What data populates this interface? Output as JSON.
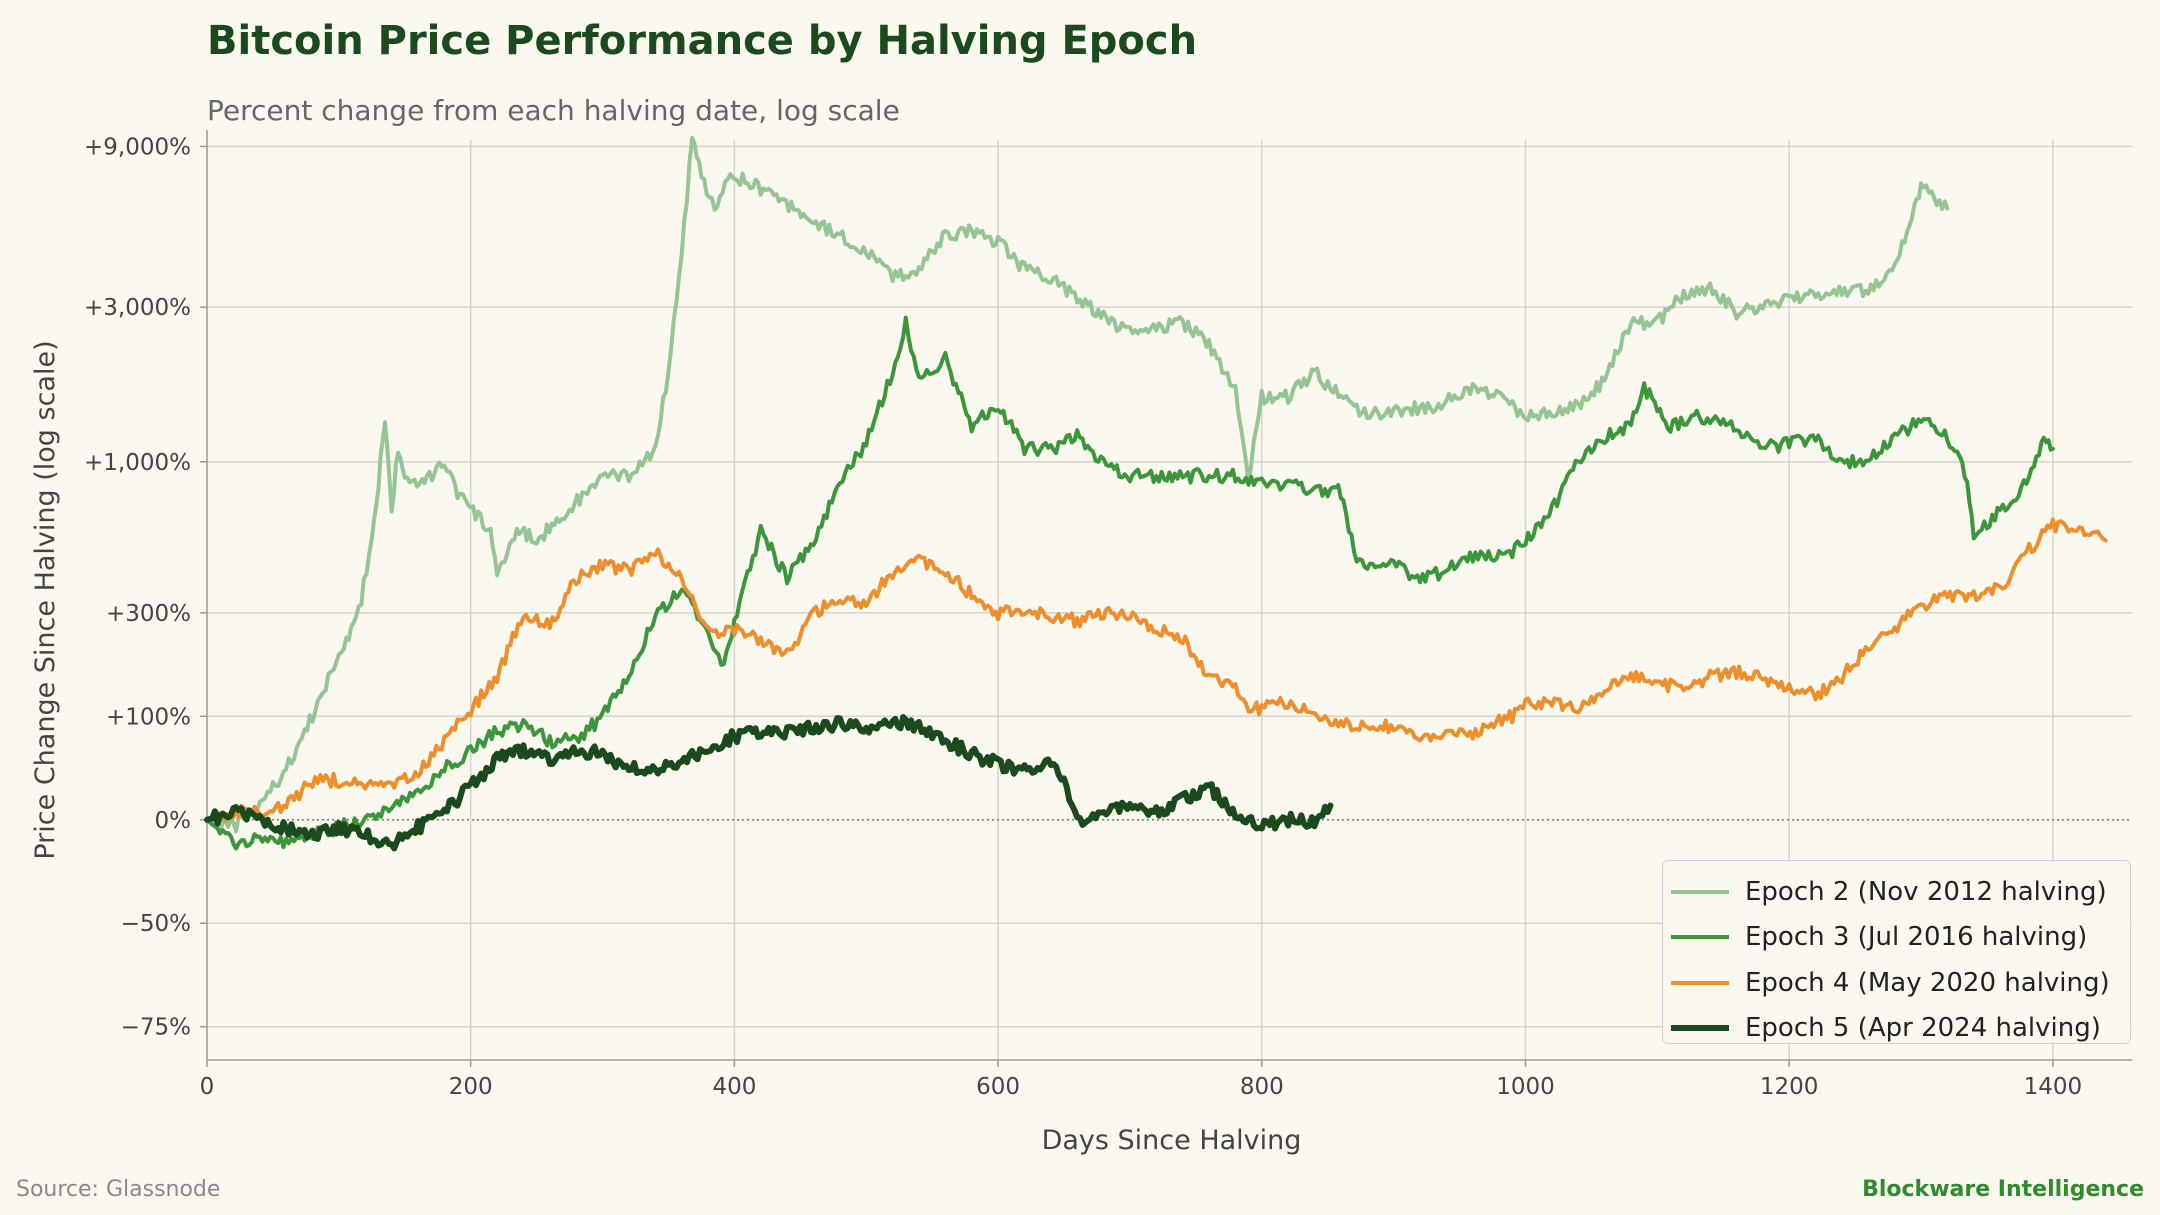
{
  "title": "Bitcoin Price Performance by Halving Epoch",
  "subtitle": "Percent change from each halving date, log scale",
  "source": "Source: Glassnode",
  "brand": "Blockware Intelligence",
  "chart_data": {
    "type": "line",
    "title": "Bitcoin Price Performance by Halving Epoch",
    "subtitle": "Percent change from each halving date, log scale",
    "xlabel": "Days Since Halving",
    "ylabel": "Price Change Since Halving (log scale)",
    "y_scale": "log (price multiple)",
    "xlim": [
      0,
      1460
    ],
    "ylim_multiple": [
      0.2,
      95
    ],
    "x_ticks": [
      0,
      200,
      400,
      600,
      800,
      1000,
      1200,
      1400
    ],
    "y_ticks": [
      {
        "label": "+9,000%",
        "multiple": 91
      },
      {
        "label": "+3,000%",
        "multiple": 31
      },
      {
        "label": "+1,000%",
        "multiple": 11
      },
      {
        "label": "+300%",
        "multiple": 4
      },
      {
        "label": "+100%",
        "multiple": 2
      },
      {
        "label": "0%",
        "multiple": 1
      },
      {
        "label": "−50%",
        "multiple": 0.5
      },
      {
        "label": "−75%",
        "multiple": 0.25
      }
    ],
    "grid": true,
    "legend_position": "bottom-right",
    "series": [
      {
        "name": "Epoch 2 (Nov 2012 halving)",
        "color": "#95c595",
        "width": 4,
        "points": [
          [
            0,
            1.0
          ],
          [
            20,
            0.95
          ],
          [
            40,
            1.1
          ],
          [
            60,
            1.4
          ],
          [
            80,
            2.0
          ],
          [
            100,
            3.0
          ],
          [
            115,
            4.0
          ],
          [
            125,
            6.5
          ],
          [
            130,
            9.5
          ],
          [
            135,
            15
          ],
          [
            140,
            8
          ],
          [
            145,
            12
          ],
          [
            150,
            10
          ],
          [
            165,
            9.5
          ],
          [
            180,
            11
          ],
          [
            190,
            9
          ],
          [
            200,
            8
          ],
          [
            215,
            7
          ],
          [
            220,
            5
          ],
          [
            235,
            7
          ],
          [
            250,
            6.5
          ],
          [
            275,
            8
          ],
          [
            300,
            10
          ],
          [
            320,
            10
          ],
          [
            340,
            12
          ],
          [
            350,
            20
          ],
          [
            360,
            45
          ],
          [
            368,
            95
          ],
          [
            375,
            75
          ],
          [
            385,
            60
          ],
          [
            395,
            75
          ],
          [
            410,
            72
          ],
          [
            430,
            65
          ],
          [
            445,
            60
          ],
          [
            460,
            55
          ],
          [
            480,
            50
          ],
          [
            500,
            45
          ],
          [
            520,
            38
          ],
          [
            540,
            40
          ],
          [
            560,
            50
          ],
          [
            580,
            52
          ],
          [
            600,
            48
          ],
          [
            620,
            40
          ],
          [
            640,
            38
          ],
          [
            660,
            33
          ],
          [
            680,
            29
          ],
          [
            700,
            26
          ],
          [
            720,
            27
          ],
          [
            740,
            28
          ],
          [
            760,
            24
          ],
          [
            780,
            18
          ],
          [
            790,
            10
          ],
          [
            800,
            17
          ],
          [
            820,
            17
          ],
          [
            840,
            20
          ],
          [
            860,
            17
          ],
          [
            880,
            15
          ],
          [
            900,
            15.5
          ],
          [
            930,
            16
          ],
          [
            960,
            18
          ],
          [
            980,
            17
          ],
          [
            1000,
            15
          ],
          [
            1020,
            15.5
          ],
          [
            1040,
            16
          ],
          [
            1060,
            19
          ],
          [
            1080,
            28
          ],
          [
            1100,
            28
          ],
          [
            1120,
            34
          ],
          [
            1140,
            35
          ],
          [
            1160,
            30
          ],
          [
            1180,
            31
          ],
          [
            1200,
            33
          ],
          [
            1230,
            34
          ],
          [
            1260,
            35
          ],
          [
            1280,
            40
          ],
          [
            1295,
            60
          ],
          [
            1300,
            70
          ],
          [
            1310,
            65
          ],
          [
            1320,
            60
          ]
        ]
      },
      {
        "name": "Epoch 3 (Jul 2016 halving)",
        "color": "#3c963c",
        "width": 4,
        "points": [
          [
            0,
            1.0
          ],
          [
            20,
            0.85
          ],
          [
            40,
            0.9
          ],
          [
            60,
            0.85
          ],
          [
            80,
            0.9
          ],
          [
            100,
            0.95
          ],
          [
            120,
            1.0
          ],
          [
            140,
            1.1
          ],
          [
            160,
            1.2
          ],
          [
            180,
            1.4
          ],
          [
            200,
            1.6
          ],
          [
            220,
            1.8
          ],
          [
            240,
            1.9
          ],
          [
            260,
            1.7
          ],
          [
            280,
            1.7
          ],
          [
            300,
            2.0
          ],
          [
            320,
            2.6
          ],
          [
            340,
            4.0
          ],
          [
            360,
            4.6
          ],
          [
            380,
            3.6
          ],
          [
            390,
            2.8
          ],
          [
            400,
            3.7
          ],
          [
            420,
            7.0
          ],
          [
            440,
            5.0
          ],
          [
            460,
            6.5
          ],
          [
            480,
            9.5
          ],
          [
            500,
            12.5
          ],
          [
            520,
            20
          ],
          [
            530,
            28
          ],
          [
            540,
            19
          ],
          [
            560,
            22
          ],
          [
            580,
            14
          ],
          [
            600,
            16
          ],
          [
            620,
            12
          ],
          [
            640,
            12
          ],
          [
            660,
            13
          ],
          [
            680,
            11
          ],
          [
            700,
            10
          ],
          [
            720,
            10
          ],
          [
            740,
            10
          ],
          [
            760,
            10
          ],
          [
            780,
            10
          ],
          [
            800,
            9.5
          ],
          [
            820,
            9.5
          ],
          [
            840,
            9.0
          ],
          [
            860,
            9.0
          ],
          [
            870,
            6.0
          ],
          [
            880,
            5.5
          ],
          [
            900,
            5.5
          ],
          [
            920,
            5.0
          ],
          [
            940,
            5.3
          ],
          [
            960,
            5.8
          ],
          [
            990,
            6.0
          ],
          [
            1000,
            6.5
          ],
          [
            1020,
            8.0
          ],
          [
            1040,
            11
          ],
          [
            1060,
            13
          ],
          [
            1080,
            14
          ],
          [
            1090,
            18
          ],
          [
            1110,
            14
          ],
          [
            1130,
            15
          ],
          [
            1150,
            14.5
          ],
          [
            1170,
            13
          ],
          [
            1190,
            12
          ],
          [
            1200,
            12.5
          ],
          [
            1220,
            13
          ],
          [
            1240,
            11
          ],
          [
            1260,
            11
          ],
          [
            1280,
            13
          ],
          [
            1300,
            14.5
          ],
          [
            1320,
            13
          ],
          [
            1335,
            10
          ],
          [
            1340,
            6.5
          ],
          [
            1360,
            8
          ],
          [
            1380,
            9.5
          ],
          [
            1395,
            13
          ],
          [
            1400,
            12
          ]
        ]
      },
      {
        "name": "Epoch 4 (May 2020 halving)",
        "color": "#ee8e2c",
        "width": 4,
        "points": [
          [
            0,
            1.0
          ],
          [
            20,
            1.05
          ],
          [
            40,
            1.05
          ],
          [
            60,
            1.1
          ],
          [
            80,
            1.3
          ],
          [
            100,
            1.3
          ],
          [
            120,
            1.25
          ],
          [
            140,
            1.25
          ],
          [
            160,
            1.35
          ],
          [
            180,
            1.7
          ],
          [
            200,
            2.1
          ],
          [
            220,
            2.6
          ],
          [
            240,
            4.0
          ],
          [
            260,
            3.7
          ],
          [
            280,
            5.0
          ],
          [
            300,
            5.5
          ],
          [
            320,
            5.3
          ],
          [
            340,
            6.0
          ],
          [
            360,
            5.0
          ],
          [
            380,
            3.5
          ],
          [
            400,
            3.6
          ],
          [
            420,
            3.3
          ],
          [
            440,
            3.0
          ],
          [
            460,
            4.0
          ],
          [
            480,
            4.4
          ],
          [
            500,
            4.3
          ],
          [
            520,
            5.2
          ],
          [
            540,
            5.7
          ],
          [
            560,
            5.3
          ],
          [
            580,
            4.5
          ],
          [
            600,
            4.0
          ],
          [
            620,
            4.1
          ],
          [
            640,
            3.9
          ],
          [
            660,
            3.8
          ],
          [
            680,
            4.0
          ],
          [
            700,
            4.0
          ],
          [
            720,
            3.6
          ],
          [
            740,
            3.4
          ],
          [
            760,
            2.6
          ],
          [
            780,
            2.4
          ],
          [
            790,
            2.1
          ],
          [
            800,
            2.1
          ],
          [
            820,
            2.2
          ],
          [
            840,
            2.0
          ],
          [
            860,
            1.9
          ],
          [
            880,
            1.9
          ],
          [
            900,
            1.85
          ],
          [
            920,
            1.75
          ],
          [
            940,
            1.8
          ],
          [
            960,
            1.8
          ],
          [
            990,
            2.0
          ],
          [
            1000,
            2.2
          ],
          [
            1020,
            2.2
          ],
          [
            1040,
            2.1
          ],
          [
            1060,
            2.4
          ],
          [
            1080,
            2.6
          ],
          [
            1100,
            2.5
          ],
          [
            1120,
            2.4
          ],
          [
            1140,
            2.6
          ],
          [
            1160,
            2.7
          ],
          [
            1180,
            2.6
          ],
          [
            1200,
            2.4
          ],
          [
            1220,
            2.3
          ],
          [
            1240,
            2.6
          ],
          [
            1260,
            3.2
          ],
          [
            1280,
            3.6
          ],
          [
            1300,
            4.2
          ],
          [
            1320,
            4.5
          ],
          [
            1340,
            4.5
          ],
          [
            1360,
            4.7
          ],
          [
            1380,
            6.0
          ],
          [
            1400,
            7.2
          ],
          [
            1420,
            6.9
          ],
          [
            1440,
            6.5
          ]
        ]
      },
      {
        "name": "Epoch 5 (Apr 2024 halving)",
        "color": "#1c4a1f",
        "width": 6,
        "points": [
          [
            0,
            1.0
          ],
          [
            20,
            1.05
          ],
          [
            40,
            1.0
          ],
          [
            60,
            0.95
          ],
          [
            80,
            0.9
          ],
          [
            100,
            0.95
          ],
          [
            120,
            0.9
          ],
          [
            140,
            0.85
          ],
          [
            160,
            0.95
          ],
          [
            180,
            1.05
          ],
          [
            200,
            1.25
          ],
          [
            220,
            1.5
          ],
          [
            240,
            1.6
          ],
          [
            260,
            1.5
          ],
          [
            280,
            1.6
          ],
          [
            300,
            1.55
          ],
          [
            320,
            1.4
          ],
          [
            340,
            1.4
          ],
          [
            360,
            1.5
          ],
          [
            380,
            1.6
          ],
          [
            400,
            1.75
          ],
          [
            420,
            1.8
          ],
          [
            440,
            1.8
          ],
          [
            460,
            1.85
          ],
          [
            480,
            1.9
          ],
          [
            500,
            1.85
          ],
          [
            520,
            1.95
          ],
          [
            540,
            1.85
          ],
          [
            560,
            1.7
          ],
          [
            580,
            1.55
          ],
          [
            600,
            1.45
          ],
          [
            620,
            1.4
          ],
          [
            640,
            1.45
          ],
          [
            650,
            1.3
          ],
          [
            660,
            1.0
          ],
          [
            680,
            1.05
          ],
          [
            700,
            1.1
          ],
          [
            720,
            1.05
          ],
          [
            740,
            1.15
          ],
          [
            760,
            1.25
          ],
          [
            780,
            1.05
          ],
          [
            800,
            0.95
          ],
          [
            820,
            1.0
          ],
          [
            840,
            0.98
          ],
          [
            852,
            1.1
          ]
        ]
      }
    ]
  },
  "legend": [
    {
      "label": "Epoch 2 (Nov 2012 halving)",
      "color": "#95c595"
    },
    {
      "label": "Epoch 3 (Jul 2016 halving)",
      "color": "#3c963c"
    },
    {
      "label": "Epoch 4 (May 2020 halving)",
      "color": "#ee8e2c"
    },
    {
      "label": "Epoch 5 (Apr 2024 halving)",
      "color": "#1c4a1f"
    }
  ]
}
